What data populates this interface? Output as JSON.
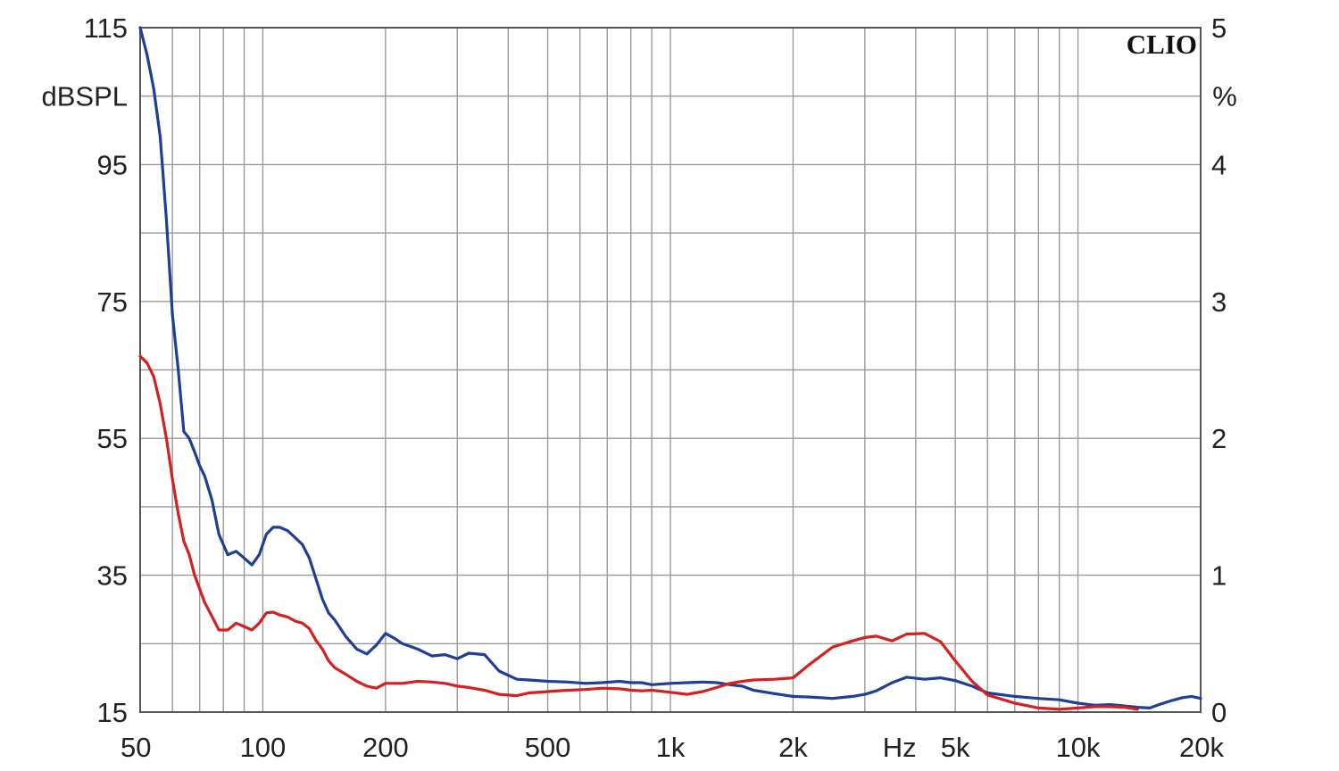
{
  "chart_data": {
    "type": "line",
    "title": "",
    "brand": "CLIO",
    "x_scale": "log",
    "xlim": [
      50,
      20000
    ],
    "ylim_left": [
      15,
      115
    ],
    "ylim_right": [
      0,
      5
    ],
    "ylabel_left": "dBSPL",
    "ylabel_right": "%",
    "xlabel": "Hz",
    "grid": true,
    "legend": "none",
    "x_ticks": [
      {
        "value": 50,
        "label": "50"
      },
      {
        "value": 100,
        "label": "100"
      },
      {
        "value": 200,
        "label": "200"
      },
      {
        "value": 500,
        "label": "500"
      },
      {
        "value": 1000,
        "label": "1k"
      },
      {
        "value": 2000,
        "label": "2k"
      },
      {
        "value": 5000,
        "label": "5k"
      },
      {
        "value": 10000,
        "label": "10k"
      },
      {
        "value": 20000,
        "label": "20k"
      }
    ],
    "y_ticks_left": [
      "15",
      "35",
      "55",
      "75",
      "95",
      "115"
    ],
    "y_ticks_right": [
      "0",
      "1",
      "2",
      "3",
      "4",
      "5"
    ],
    "series": [
      {
        "color": "#1f3f95",
        "axis": "left",
        "x": [
          50,
          52,
          54,
          56,
          58,
          60,
          62,
          64,
          66,
          68,
          70,
          72,
          75,
          78,
          82,
          86,
          90,
          94,
          98,
          102,
          106,
          110,
          115,
          120,
          125,
          130,
          135,
          140,
          145,
          150,
          160,
          170,
          180,
          190,
          200,
          210,
          220,
          240,
          260,
          280,
          300,
          320,
          350,
          380,
          420,
          450,
          500,
          560,
          620,
          680,
          750,
          800,
          850,
          900,
          1000,
          1100,
          1200,
          1300,
          1400,
          1500,
          1600,
          1800,
          2000,
          2200,
          2500,
          2800,
          3000,
          3200,
          3500,
          3800,
          4200,
          4600,
          5000,
          5500,
          6000,
          7000,
          8000,
          9000,
          10000,
          11000,
          12000,
          13000,
          14000,
          15000,
          16000,
          17000,
          18000,
          19000,
          20000
        ],
        "y": [
          115,
          111,
          106,
          99,
          87,
          73,
          65,
          56,
          55,
          53,
          51,
          49.5,
          46,
          41,
          38,
          38.5,
          37.5,
          36.5,
          38,
          41,
          42,
          42,
          41.5,
          40.5,
          39.5,
          37.5,
          34.5,
          31.5,
          29.5,
          28.5,
          26,
          24.2,
          23.5,
          24.8,
          26.5,
          25.8,
          25,
          24.2,
          23.2,
          23.4,
          22.8,
          23.6,
          23.4,
          21,
          19.8,
          19.7,
          19.5,
          19.4,
          19.2,
          19.3,
          19.5,
          19.3,
          19.3,
          19,
          19.2,
          19.3,
          19.4,
          19.3,
          19,
          18.8,
          18.2,
          17.7,
          17.3,
          17.2,
          17.0,
          17.3,
          17.6,
          18.1,
          19.3,
          20.1,
          19.8,
          20.0,
          19.6,
          18.8,
          17.8,
          17.3,
          17.0,
          16.8,
          16.3,
          16.0,
          16.1,
          15.9,
          15.7,
          15.6,
          16.2,
          16.7,
          17.1,
          17.3,
          17.0
        ]
      },
      {
        "color": "#d42020",
        "axis": "left",
        "x": [
          50,
          52,
          54,
          56,
          58,
          60,
          62,
          64,
          66,
          68,
          70,
          72,
          75,
          78,
          82,
          86,
          90,
          94,
          98,
          102,
          106,
          110,
          115,
          120,
          125,
          130,
          135,
          140,
          145,
          150,
          160,
          170,
          180,
          190,
          200,
          220,
          240,
          260,
          280,
          300,
          320,
          350,
          380,
          420,
          450,
          500,
          560,
          620,
          680,
          750,
          800,
          850,
          900,
          1000,
          1100,
          1200,
          1300,
          1400,
          1500,
          1600,
          1800,
          2000,
          2200,
          2500,
          2800,
          3000,
          3200,
          3500,
          3800,
          4200,
          4600,
          5000,
          5500,
          6000,
          7000,
          8000,
          9000,
          10000,
          11000,
          12000,
          13000,
          14000
        ],
        "y": [
          67,
          66,
          64,
          60,
          55,
          49,
          44,
          40,
          38,
          35,
          33,
          31,
          29,
          27,
          27,
          28,
          27.5,
          27,
          28,
          29.5,
          29.6,
          29.2,
          28.9,
          28.3,
          28.0,
          27.2,
          25.5,
          24.2,
          22.5,
          21.5,
          20.5,
          19.5,
          18.8,
          18.5,
          19.2,
          19.2,
          19.5,
          19.4,
          19.2,
          18.8,
          18.6,
          18.2,
          17.6,
          17.4,
          17.8,
          18.0,
          18.2,
          18.3,
          18.5,
          18.4,
          18.2,
          18.1,
          18.2,
          17.9,
          17.6,
          18.0,
          18.6,
          19.2,
          19.5,
          19.7,
          19.8,
          20.0,
          22.0,
          24.5,
          25.4,
          25.9,
          26.1,
          25.4,
          26.4,
          26.5,
          25.3,
          22.5,
          19.5,
          17.5,
          16.3,
          15.6,
          15.4,
          15.6,
          15.8,
          15.8,
          15.7,
          15.4
        ]
      }
    ]
  }
}
